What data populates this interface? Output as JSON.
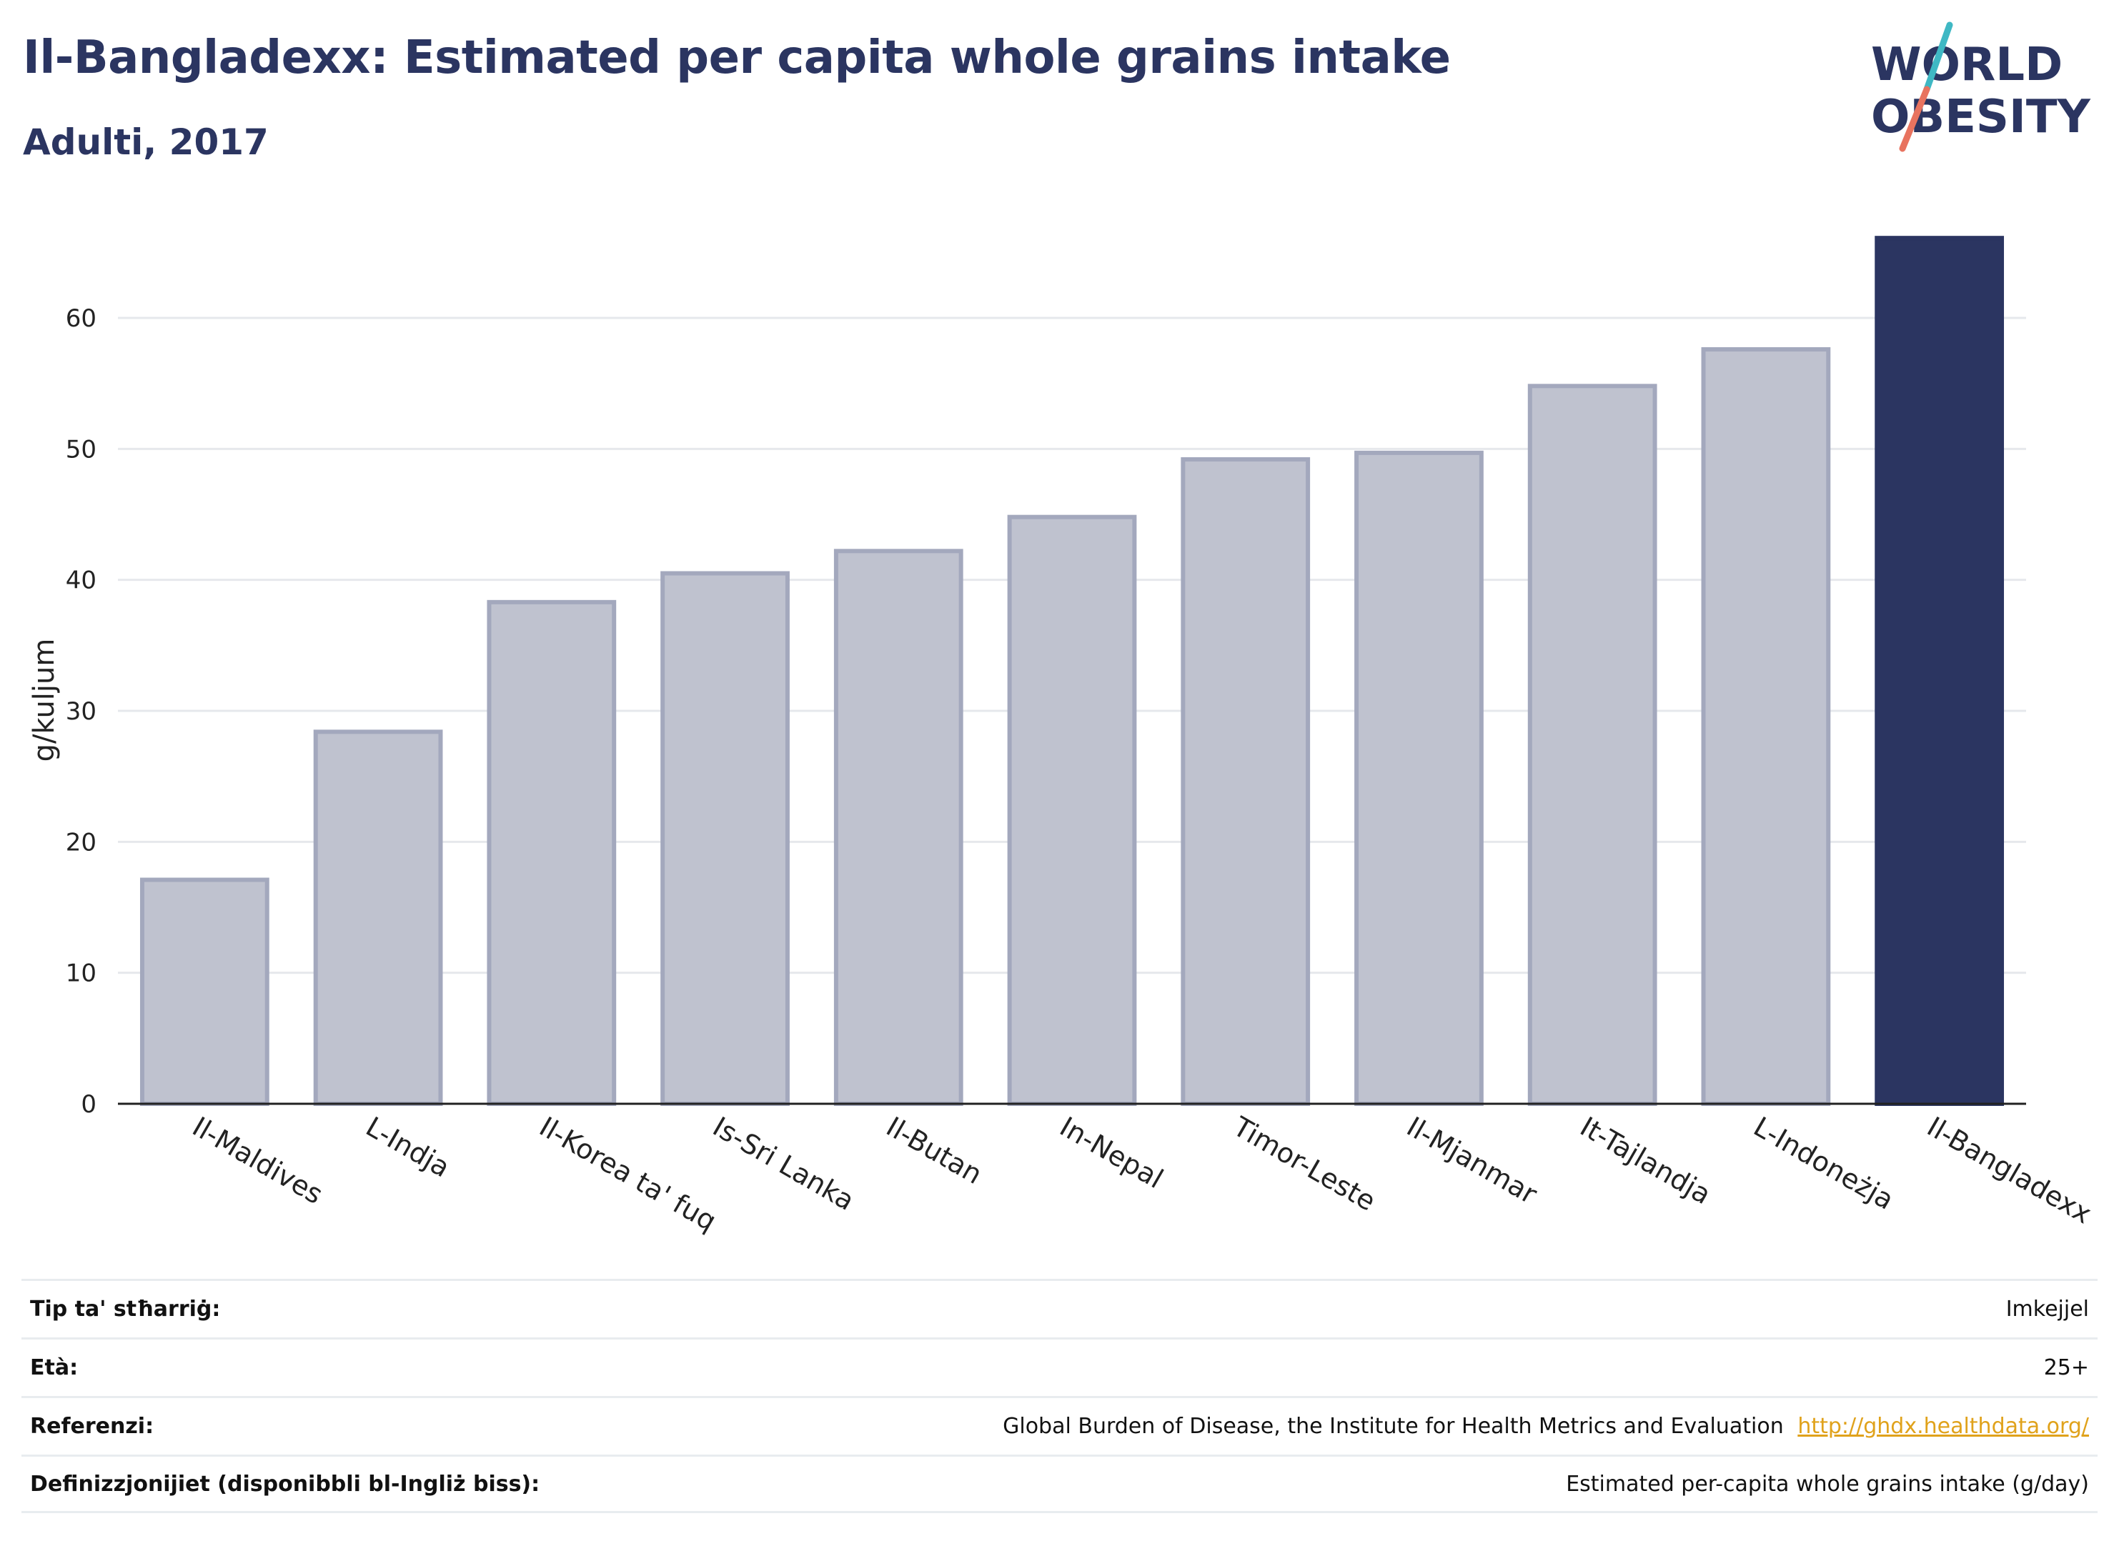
{
  "header": {
    "title": "Il-Bangladexx: Estimated per capita whole grains intake",
    "subtitle": "Adulti, 2017"
  },
  "logo": {
    "line1": "WORLD",
    "line2": "OBESITY",
    "colors": {
      "text": "#2b3561",
      "slash_top": "#3fb8c4",
      "slash_bottom": "#e8735f"
    }
  },
  "chart_data": {
    "type": "bar",
    "ylabel": "g/kuljum",
    "ylim": [
      0,
      66
    ],
    "yticks": [
      0,
      10,
      20,
      30,
      40,
      50,
      60
    ],
    "grid": true,
    "categories": [
      "Il-Maldives",
      "L-Indja",
      "Il-Korea ta' fuq",
      "Is-Sri Lanka",
      "Il-Butan",
      "In-Nepal",
      "Timor-Leste",
      "Il-Mjanmar",
      "It-Tajlandja",
      "L-Indoneżja",
      "Il-Bangladexx"
    ],
    "values": [
      17.1,
      28.4,
      38.3,
      40.5,
      42.2,
      44.8,
      49.2,
      49.7,
      54.8,
      57.6,
      66.1
    ],
    "highlight_index": 10,
    "colors": {
      "bar": "#bfc2cf",
      "bar_edge": "#a3a8bd",
      "highlight": "#2b3561",
      "grid": "#e6e8ec",
      "axis": "#222222"
    }
  },
  "info": {
    "rows": [
      {
        "label": "Tip ta' stħarriġ:",
        "value": "Imkejjel"
      },
      {
        "label": "Età:",
        "value": "25+"
      },
      {
        "label": "Referenzi:",
        "value": "Global Burden of Disease, the Institute for Health Metrics and Evaluation",
        "link": "http://ghdx.healthdata.org/"
      },
      {
        "label": "Definizzjonijiet (disponibbli bl-Ingliż biss):",
        "value": "Estimated per-capita whole grains intake (g/day)"
      }
    ]
  }
}
